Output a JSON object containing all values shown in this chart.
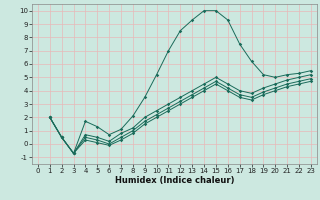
{
  "title": "",
  "xlabel": "Humidex (Indice chaleur)",
  "bg_color": "#cce8e0",
  "grid_color_major": "#e8c8c8",
  "grid_color_minor": "#e8c8c8",
  "line_color": "#1a6b5a",
  "xlim": [
    -0.5,
    23.5
  ],
  "ylim": [
    -1.5,
    10.5
  ],
  "xticks": [
    0,
    1,
    2,
    3,
    4,
    5,
    6,
    7,
    8,
    9,
    10,
    11,
    12,
    13,
    14,
    15,
    16,
    17,
    18,
    19,
    20,
    21,
    22,
    23
  ],
  "yticks": [
    -1,
    0,
    1,
    2,
    3,
    4,
    5,
    6,
    7,
    8,
    9,
    10
  ],
  "line1_x": [
    1,
    2,
    3,
    4,
    5,
    6,
    7,
    8,
    9,
    10,
    11,
    12,
    13,
    14,
    15,
    16,
    17,
    18,
    19,
    20,
    21,
    22,
    23
  ],
  "line1_y": [
    2.0,
    0.5,
    -0.7,
    1.7,
    1.3,
    0.7,
    1.1,
    2.1,
    3.5,
    5.2,
    7.0,
    8.5,
    9.3,
    10.0,
    10.0,
    9.3,
    7.5,
    6.2,
    5.2,
    5.0,
    5.2,
    5.3,
    5.5
  ],
  "line2_x": [
    1,
    2,
    3,
    4,
    5,
    6,
    7,
    8,
    9,
    10,
    11,
    12,
    13,
    14,
    15,
    16,
    17,
    18,
    19,
    20,
    21,
    22,
    23
  ],
  "line2_y": [
    2.0,
    0.5,
    -0.7,
    0.7,
    0.5,
    0.2,
    0.8,
    1.2,
    2.0,
    2.5,
    3.0,
    3.5,
    4.0,
    4.5,
    5.0,
    4.5,
    4.0,
    3.8,
    4.2,
    4.5,
    4.8,
    5.0,
    5.2
  ],
  "line3_x": [
    1,
    2,
    3,
    4,
    5,
    6,
    7,
    8,
    9,
    10,
    11,
    12,
    13,
    14,
    15,
    16,
    17,
    18,
    19,
    20,
    21,
    22,
    23
  ],
  "line3_y": [
    2.0,
    0.5,
    -0.7,
    0.5,
    0.3,
    0.0,
    0.5,
    1.0,
    1.7,
    2.2,
    2.7,
    3.2,
    3.7,
    4.2,
    4.7,
    4.2,
    3.7,
    3.5,
    3.9,
    4.2,
    4.5,
    4.7,
    4.9
  ],
  "line4_x": [
    1,
    2,
    3,
    4,
    5,
    6,
    7,
    8,
    9,
    10,
    11,
    12,
    13,
    14,
    15,
    16,
    17,
    18,
    19,
    20,
    21,
    22,
    23
  ],
  "line4_y": [
    2.0,
    0.5,
    -0.7,
    0.3,
    0.1,
    -0.1,
    0.3,
    0.8,
    1.5,
    2.0,
    2.5,
    3.0,
    3.5,
    4.0,
    4.5,
    4.0,
    3.5,
    3.3,
    3.7,
    4.0,
    4.3,
    4.5,
    4.7
  ],
  "xlabel_fontsize": 6,
  "tick_fontsize": 5
}
